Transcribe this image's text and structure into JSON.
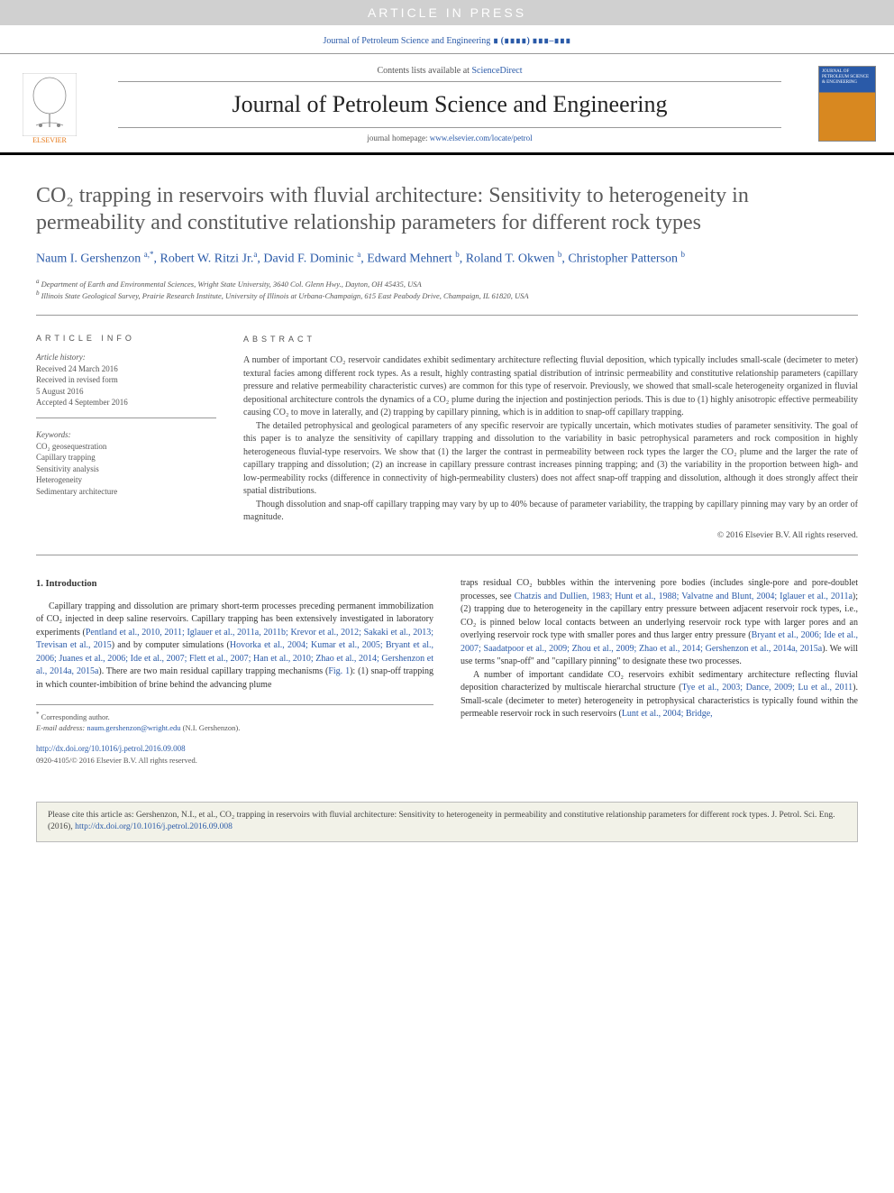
{
  "watermark": "ARTICLE IN PRESS",
  "journal_citation_prefix": "Journal of Petroleum Science and Engineering",
  "journal_citation_blot": "∎ (∎∎∎∎) ∎∎∎–∎∎∎",
  "header": {
    "contents_prefix": "Contents lists available at ",
    "contents_link": "ScienceDirect",
    "journal_name": "Journal of Petroleum Science and Engineering",
    "homepage_prefix": "journal homepage: ",
    "homepage_link": "www.elsevier.com/locate/petrol",
    "elsevier_label": "ELSEVIER",
    "cover_text": "JOURNAL OF PETROLEUM SCIENCE & ENGINEERING"
  },
  "title": "CO₂ trapping in reservoirs with fluvial architecture: Sensitivity to heterogeneity in permeability and constitutive relationship parameters for different rock types",
  "authors_html": "Naum I. Gershenzon <span class='sup'>a,</span><span class='sup star'>*</span>, Robert W. Ritzi Jr.<span class='sup'>a</span>, David F. Dominic <span class='sup'>a</span>, Edward Mehnert <span class='sup'>b</span>, Roland T. Okwen <span class='sup'>b</span>, Christopher Patterson <span class='sup'>b</span>",
  "affiliations": {
    "a": "Department of Earth and Environmental Sciences, Wright State University, 3640 Col. Glenn Hwy., Dayton, OH 45435, USA",
    "b": "Illinois State Geological Survey, Prairie Research Institute, University of Illinois at Urbana-Champaign, 615 East Peabody Drive, Champaign, IL 61820, USA"
  },
  "info": {
    "head": "ARTICLE INFO",
    "history_label": "Article history:",
    "history": [
      "Received 24 March 2016",
      "Received in revised form",
      "5 August 2016",
      "Accepted 4 September 2016"
    ],
    "keywords_label": "Keywords:",
    "keywords": [
      "CO₂ geosequestration",
      "Capillary trapping",
      "Sensitivity analysis",
      "Heterogeneity",
      "Sedimentary architecture"
    ]
  },
  "abstract": {
    "head": "ABSTRACT",
    "p1": "A number of important CO₂ reservoir candidates exhibit sedimentary architecture reflecting fluvial deposition, which typically includes small-scale (decimeter to meter) textural facies among different rock types. As a result, highly contrasting spatial distribution of intrinsic permeability and constitutive relationship parameters (capillary pressure and relative permeability characteristic curves) are common for this type of reservoir. Previously, we showed that small-scale heterogeneity organized in fluvial depositional architecture controls the dynamics of a CO₂ plume during the injection and postinjection periods. This is due to (1) highly anisotropic effective permeability causing CO₂ to move in laterally, and (2) trapping by capillary pinning, which is in addition to snap-off capillary trapping.",
    "p2": "The detailed petrophysical and geological parameters of any specific reservoir are typically uncertain, which motivates studies of parameter sensitivity. The goal of this paper is to analyze the sensitivity of capillary trapping and dissolution to the variability in basic petrophysical parameters and rock composition in highly heterogeneous fluvial-type reservoirs. We show that (1) the larger the contrast in permeability between rock types the larger the CO₂ plume and the larger the rate of capillary trapping and dissolution; (2) an increase in capillary pressure contrast increases pinning trapping; and (3) the variability in the proportion between high- and low-permeability rocks (difference in connectivity of high-permeability clusters) does not affect snap-off trapping and dissolution, although it does strongly affect their spatial distributions.",
    "p3": "Though dissolution and snap-off capillary trapping may vary by up to 40% because of parameter variability, the trapping by capillary pinning may vary by an order of magnitude.",
    "copyright": "© 2016 Elsevier B.V. All rights reserved."
  },
  "intro": {
    "head": "1.  Introduction",
    "col1_p1_a": "Capillary trapping and dissolution are primary short-term processes preceding permanent immobilization of CO₂ injected in deep saline reservoirs. Capillary trapping has been extensively investigated in laboratory experiments (",
    "col1_cites1": "Pentland et al., 2010, 2011; Iglauer et al., 2011a, 2011b; Krevor et al., 2012; Sakaki et al., 2013; Trevisan et al., 2015",
    "col1_p1_b": ") and by computer simulations (",
    "col1_cites2": "Hovorka et al., 2004; Kumar et al., 2005; Bryant et al., 2006; Juanes et al., 2006; Ide et al., 2007; Flett et al., 2007; Han et al., 2010; Zhao et al., 2014; Gershenzon et al., 2014a, 2015a",
    "col1_p1_c": "). There are two main residual capillary trapping mechanisms (",
    "col1_fig": "Fig. 1",
    "col1_p1_d": "): (1) snap-off trapping in which counter-imbibition of brine behind the advancing plume",
    "col2_p1_a": "traps residual CO₂ bubbles within the intervening pore bodies (includes single-pore and pore-doublet processes, see ",
    "col2_cites1": "Chatzis and Dullien, 1983; Hunt et al., 1988; Valvatne and Blunt, 2004; Iglauer et al., 2011a",
    "col2_p1_b": "); (2) trapping due to heterogeneity in the capillary entry pressure between adjacent reservoir rock types, i.e., CO₂ is pinned below local contacts between an underlying reservoir rock type with larger pores and an overlying reservoir rock type with smaller pores and thus larger entry pressure (",
    "col2_cites2": "Bryant et al., 2006; Ide et al., 2007; Saadatpoor et al., 2009; Zhou et al., 2009; Zhao et al., 2014; Gershenzon et al., 2014a, 2015a",
    "col2_p1_c": "). We will use terms \"snap-off\" and \"capillary pinning\" to designate these two processes.",
    "col2_p2_a": "A number of important candidate CO₂ reservoirs exhibit sedimentary architecture reflecting fluvial deposition characterized by multiscale hierarchal structure (",
    "col2_cites3": "Tye et al., 2003; Dance, 2009; Lu et al., 2011",
    "col2_p2_b": "). Small-scale (decimeter to meter) heterogeneity in petrophysical characteristics is typically found within the permeable reservoir rock in such reservoirs (",
    "col2_cites4": "Lunt et al., 2004; Bridge,"
  },
  "footnotes": {
    "corr": "Corresponding author.",
    "email_label": "E-mail address:",
    "email": "naum.gershenzon@wright.edu",
    "email_name": " (N.I. Gershenzon).",
    "doi": "http://dx.doi.org/10.1016/j.petrol.2016.09.008",
    "issn": "0920-4105/© 2016 Elsevier B.V. All rights reserved."
  },
  "citebox": {
    "text_a": "Please cite this article as: Gershenzon, N.I., et al., CO₂ trapping in reservoirs with fluvial architecture: Sensitivity to heterogeneity in permeability and constitutive relationship parameters for different rock types. J. Petrol. Sci. Eng. (2016), ",
    "link": "http://dx.doi.org/10.1016/j.petrol.2016.09.008"
  }
}
